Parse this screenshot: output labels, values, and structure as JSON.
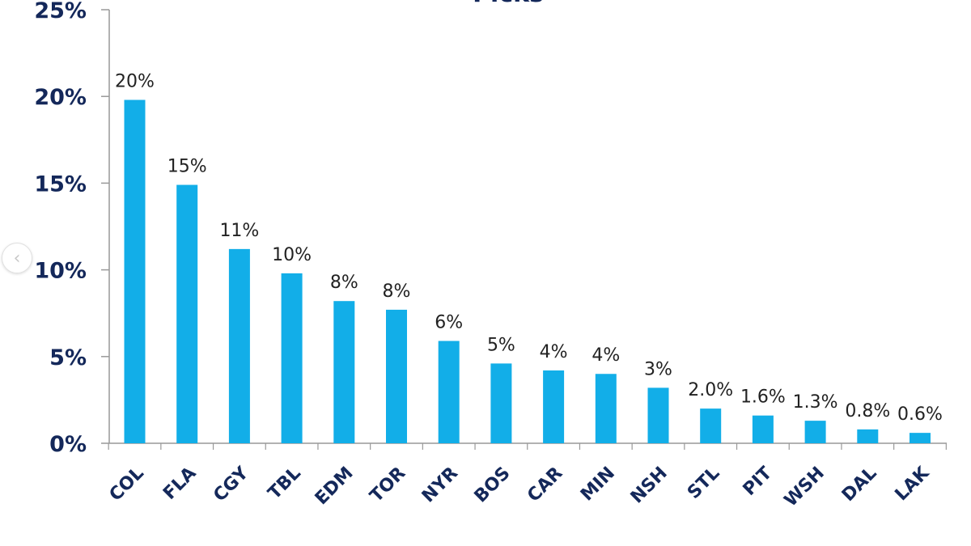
{
  "chart_data": {
    "type": "bar",
    "title": "Picks",
    "categories": [
      "COL",
      "FLA",
      "CGY",
      "TBL",
      "EDM",
      "TOR",
      "NYR",
      "BOS",
      "CAR",
      "MIN",
      "NSH",
      "STL",
      "PIT",
      "WSH",
      "DAL",
      "LAK"
    ],
    "values": [
      19.8,
      14.9,
      11.2,
      9.8,
      8.2,
      7.7,
      5.9,
      4.6,
      4.2,
      4.0,
      3.2,
      2.0,
      1.6,
      1.3,
      0.8,
      0.6
    ],
    "data_labels": [
      "20%",
      "15%",
      "11%",
      "10%",
      "8%",
      "8%",
      "6%",
      "5%",
      "4%",
      "4%",
      "3%",
      "2.0%",
      "1.6%",
      "1.3%",
      "0.8%",
      "0.6%"
    ],
    "ylim": [
      0,
      25
    ],
    "yticks": [
      0,
      5,
      10,
      15,
      20,
      25
    ],
    "ytick_labels": [
      "0%",
      "5%",
      "10%",
      "15%",
      "20%",
      "25%"
    ],
    "xlabel": "",
    "ylabel": "",
    "grid": false,
    "legend": "none",
    "colors": {
      "bar": "#12aee8",
      "axis_text": "#14285a",
      "label_text": "#222222",
      "axis_line": "#999999"
    }
  },
  "ui": {
    "nav_icon": "chevron-left-icon"
  }
}
